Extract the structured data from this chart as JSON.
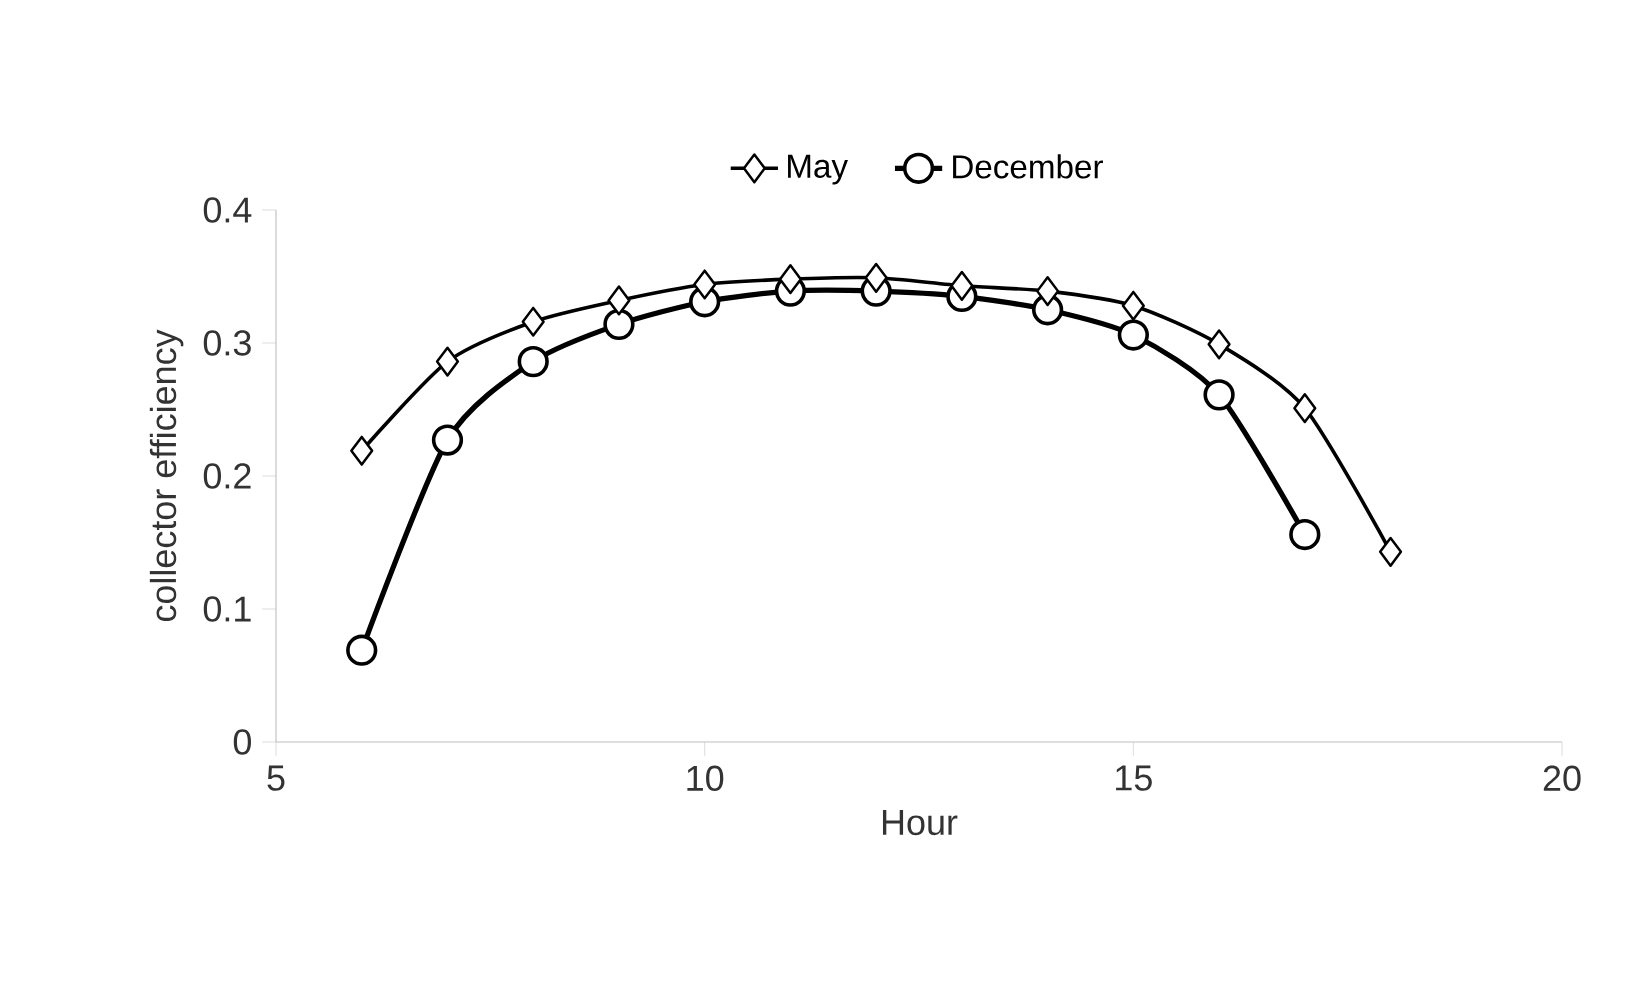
{
  "chart_data": {
    "type": "line",
    "xlabel": "Hour",
    "ylabel": "collector efficiency",
    "xlim": [
      5,
      20
    ],
    "xticks": [
      5,
      10,
      15,
      20
    ],
    "ylim": [
      0,
      0.4
    ],
    "yticks": [
      0,
      0.1,
      0.2,
      0.3,
      0.4
    ],
    "grid": false,
    "legend": "top",
    "series": [
      {
        "name": "May",
        "color": "#000000",
        "marker": "diamond",
        "x": [
          6,
          7,
          8,
          9,
          10,
          11,
          12,
          13,
          14,
          15,
          16,
          17,
          18
        ],
        "values": [
          0.219,
          0.286,
          0.316,
          0.332,
          0.344,
          0.348,
          0.349,
          0.343,
          0.339,
          0.328,
          0.299,
          0.251,
          0.143
        ]
      },
      {
        "name": "December",
        "color": "#000000",
        "marker": "circle",
        "x": [
          6,
          7,
          8,
          9,
          10,
          11,
          12,
          13,
          14,
          15,
          16,
          17
        ],
        "values": [
          0.069,
          0.227,
          0.286,
          0.314,
          0.331,
          0.339,
          0.339,
          0.335,
          0.325,
          0.306,
          0.261,
          0.156
        ]
      }
    ]
  }
}
